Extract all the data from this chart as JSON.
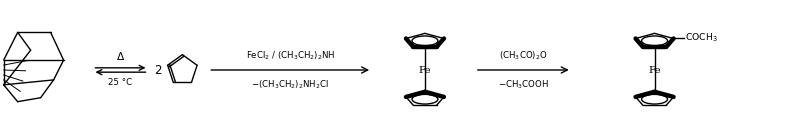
{
  "bg_color": "#ffffff",
  "text_color": "#000000",
  "fig_width": 8.0,
  "fig_height": 1.4,
  "dpi": 100,
  "step1_above": "$\\Delta$",
  "step1_below": "25 °C",
  "step2_above": "FeCl$_2$ / (CH$_3$CH$_2$)$_2$NH",
  "step2_below": "$-$(CH$_3$CH$_2$)$_2$NH$_2$Cl",
  "step3_above": "(CH$_3$CO)$_2$O",
  "step3_below": "$-$CH$_3$COOH",
  "fe_label": "Fe",
  "coch3_label": "COCH$_3$",
  "coeff": "2"
}
